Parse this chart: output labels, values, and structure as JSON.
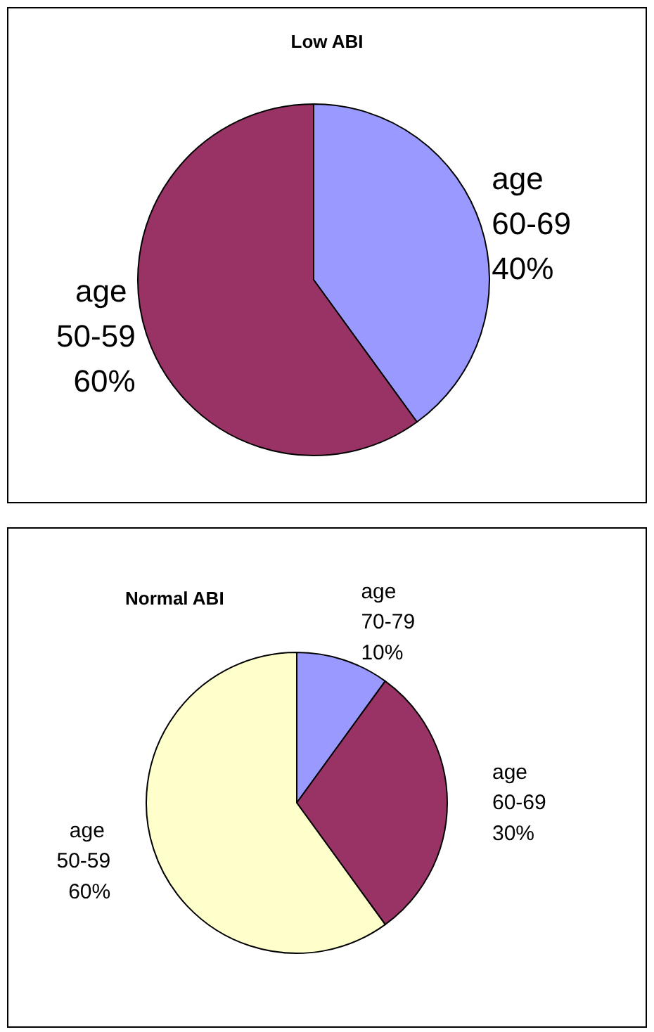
{
  "chart_data": [
    {
      "type": "pie",
      "title": "Low ABI",
      "categories": [
        "age 60-69",
        "age 50-59"
      ],
      "values": [
        40,
        60
      ],
      "value_labels": [
        "40%",
        "60%"
      ],
      "colors": [
        "#9999ff",
        "#993366"
      ],
      "legend": false
    },
    {
      "type": "pie",
      "title": "Normal ABI",
      "categories": [
        "age 70-79",
        "age 60-69",
        "age 50-59"
      ],
      "values": [
        10,
        30,
        60
      ],
      "value_labels": [
        "10%",
        "30%",
        "60%"
      ],
      "colors": [
        "#9999ff",
        "#993366",
        "#ffffcc"
      ],
      "legend": false
    }
  ]
}
